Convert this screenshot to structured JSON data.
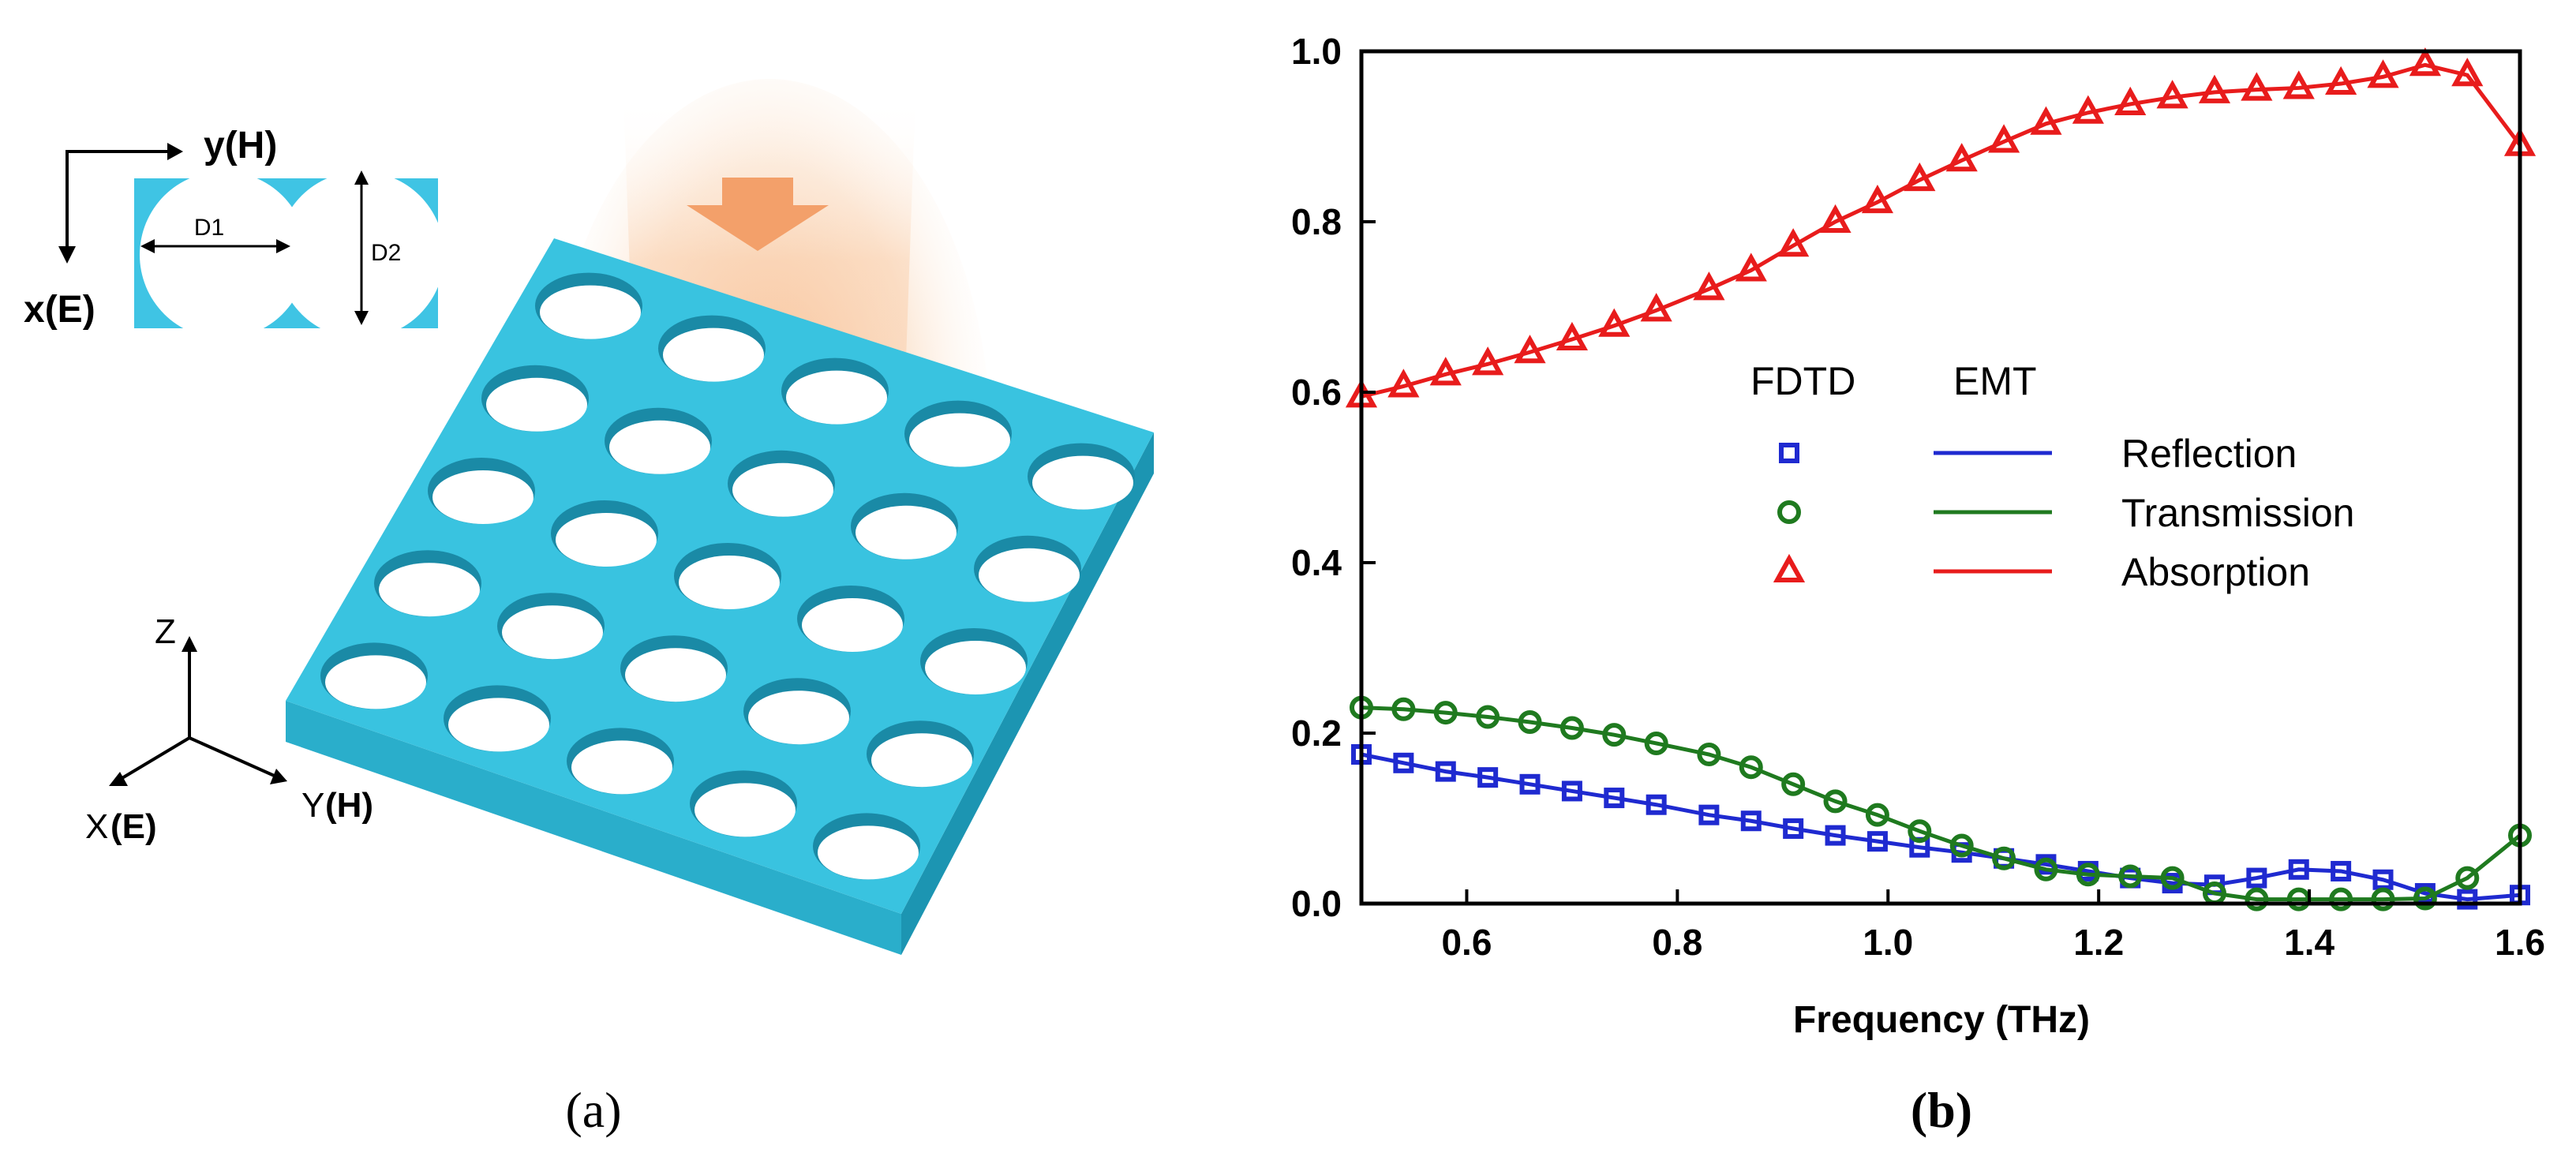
{
  "panel_a": {
    "caption": "(a)",
    "inset": {
      "axis_y": "y(H)",
      "axis_x": "x(E)",
      "d1": "D1",
      "d2": "D2"
    },
    "axes3d": {
      "z": "Z",
      "x": "X",
      "x_unit": "(E)",
      "y": "Y",
      "y_unit": "(H)"
    },
    "colors": {
      "slab_top": "#37c0dd",
      "slab_front": "#28a8c5",
      "slab_side": "#1f93ae",
      "hole": "#ffffff",
      "arrow": "#f4a064",
      "glow": "#f7c49a"
    }
  },
  "panel_b": {
    "caption": "(b)"
  },
  "chart_data": {
    "type": "line",
    "xlabel": "Frequency (THz)",
    "ylabel": "",
    "xlim": [
      0.5,
      1.6
    ],
    "ylim": [
      0.0,
      1.0
    ],
    "xticks": [
      "0.6",
      "0.8",
      "1.0",
      "1.2",
      "1.4",
      "1.6"
    ],
    "yticks": [
      "0.0",
      "0.2",
      "0.4",
      "0.6",
      "0.8",
      "1.0"
    ],
    "grid": false,
    "legend": {
      "placement": "center-right",
      "header_fdtd": "FDTD",
      "header_emt": "EMT"
    },
    "x": [
      0.5,
      0.54,
      0.58,
      0.62,
      0.66,
      0.7,
      0.74,
      0.78,
      0.83,
      0.87,
      0.91,
      0.95,
      0.99,
      1.03,
      1.07,
      1.11,
      1.15,
      1.19,
      1.23,
      1.27,
      1.31,
      1.35,
      1.39,
      1.43,
      1.47,
      1.51,
      1.55,
      1.6
    ],
    "series": [
      {
        "name": "Reflection",
        "color": "#1f2ad0",
        "marker": "square",
        "values": [
          0.175,
          0.165,
          0.155,
          0.148,
          0.14,
          0.132,
          0.124,
          0.116,
          0.104,
          0.097,
          0.088,
          0.08,
          0.073,
          0.066,
          0.06,
          0.053,
          0.046,
          0.038,
          0.03,
          0.024,
          0.022,
          0.03,
          0.04,
          0.038,
          0.028,
          0.012,
          0.005,
          0.01
        ]
      },
      {
        "name": "Transmission",
        "color": "#1f7a1f",
        "marker": "circle",
        "values": [
          0.23,
          0.228,
          0.224,
          0.219,
          0.213,
          0.206,
          0.198,
          0.188,
          0.175,
          0.16,
          0.14,
          0.12,
          0.104,
          0.085,
          0.068,
          0.053,
          0.04,
          0.034,
          0.032,
          0.03,
          0.012,
          0.005,
          0.005,
          0.005,
          0.005,
          0.006,
          0.03,
          0.08
        ]
      },
      {
        "name": "Absorption",
        "color": "#e81c1c",
        "marker": "triangle",
        "values": [
          0.595,
          0.607,
          0.621,
          0.633,
          0.647,
          0.662,
          0.678,
          0.696,
          0.721,
          0.743,
          0.772,
          0.8,
          0.823,
          0.849,
          0.872,
          0.894,
          0.915,
          0.928,
          0.938,
          0.946,
          0.952,
          0.955,
          0.957,
          0.962,
          0.97,
          0.984,
          0.972,
          0.89
        ]
      }
    ]
  }
}
